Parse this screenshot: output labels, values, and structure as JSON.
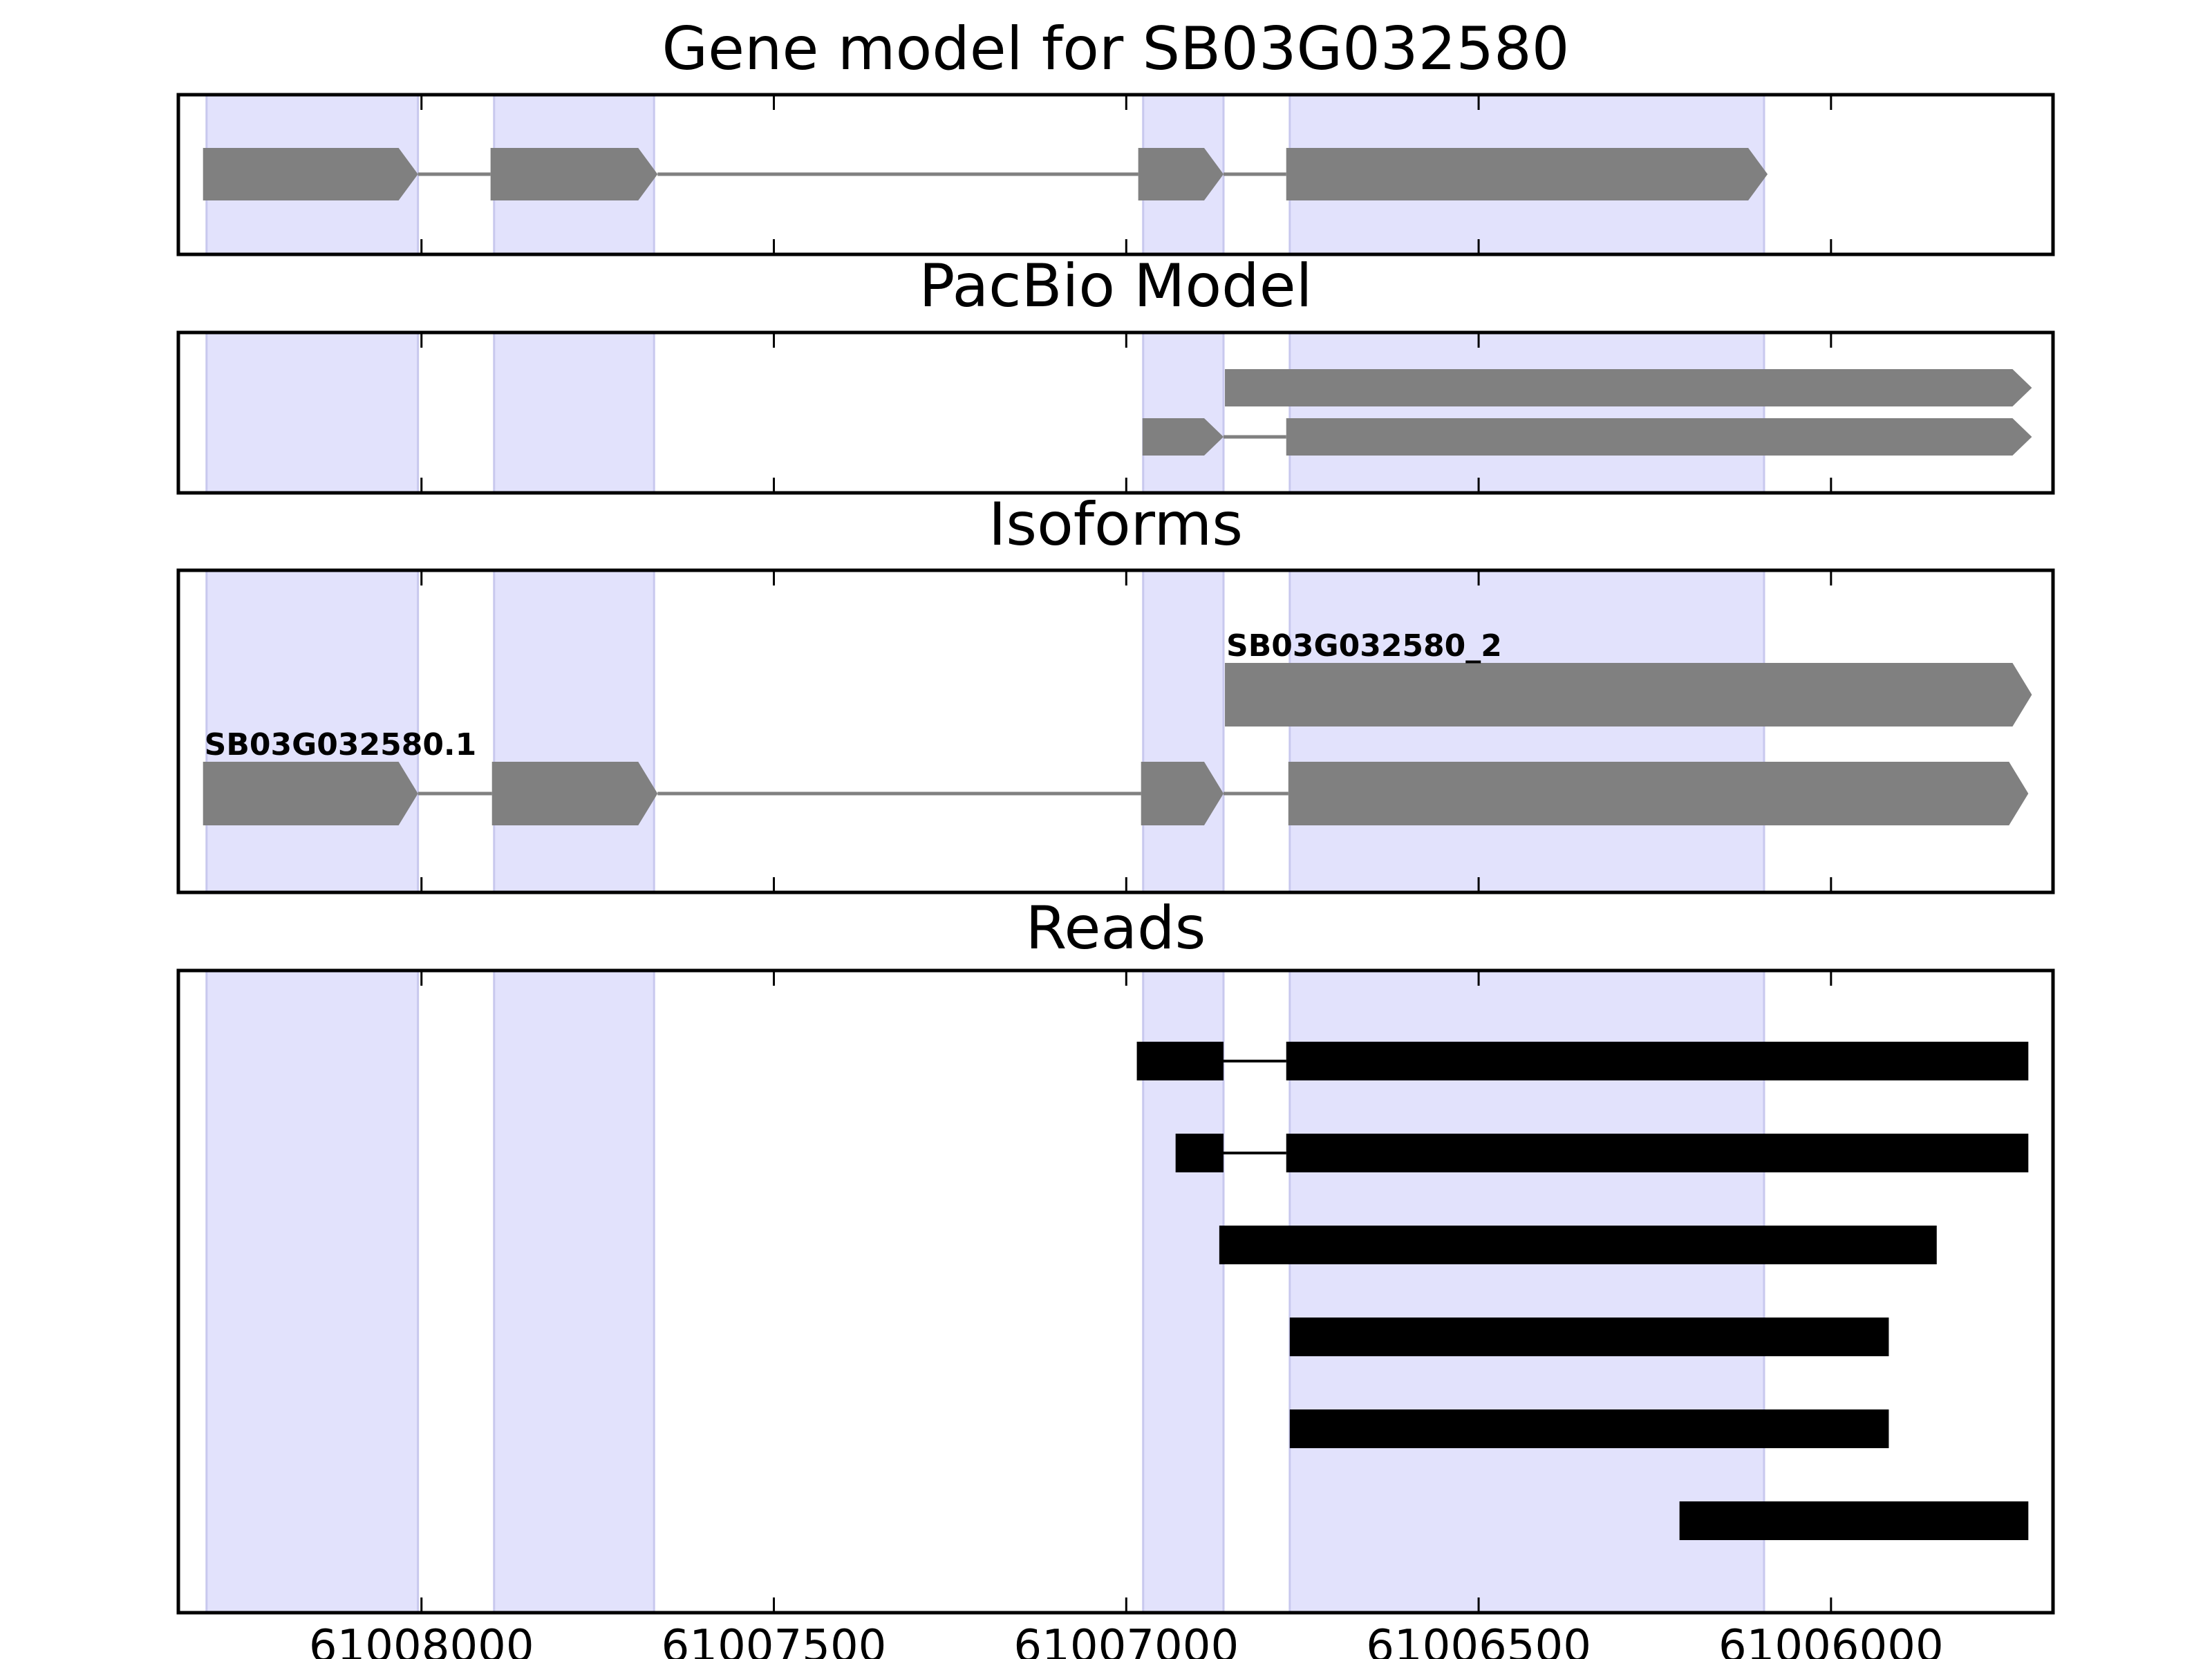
{
  "chart_data": {
    "type": "gene-track",
    "x_axis": {
      "direction": "descending",
      "xlim": [
        61008345,
        61005685
      ],
      "ticks": [
        61008000,
        61007500,
        61007000,
        61006500,
        61006000
      ],
      "tick_labels": [
        "61008000",
        "61007500",
        "61007000",
        "61006500",
        "61006000"
      ]
    },
    "exon_shading": {
      "color": "#e2e2fc",
      "regions": [
        [
          61008305,
          61008005
        ],
        [
          61007897,
          61007670
        ],
        [
          61006976,
          61006862
        ],
        [
          61006768,
          61006095
        ]
      ]
    },
    "colors": {
      "model": "#808080",
      "reads": "#000000"
    },
    "panels": [
      {
        "title": "Gene model for SB03G032580",
        "tracks": [
          {
            "label": "",
            "exons": [
              [
                61008310,
                61008005
              ],
              [
                61007902,
                61007665
              ],
              [
                61006983,
                61006862
              ],
              [
                61006773,
                61006090
              ]
            ]
          }
        ]
      },
      {
        "title": "PacBio Model",
        "tracks": [
          {
            "label": "",
            "exons": [
              [
                61006860,
                61005715
              ]
            ]
          },
          {
            "label": "",
            "exons": [
              [
                61006977,
                61006862
              ],
              [
                61006773,
                61005715
              ]
            ]
          }
        ]
      },
      {
        "title": "Isoforms",
        "tracks": [
          {
            "label": "SB03G032580_2",
            "exons": [
              [
                61006860,
                61005715
              ]
            ]
          },
          {
            "label": "SB03G032580.1",
            "exons": [
              [
                61008310,
                61008005
              ],
              [
                61007900,
                61007665
              ],
              [
                61006979,
                61006862
              ],
              [
                61006770,
                61005720
              ]
            ]
          }
        ]
      },
      {
        "title": "Reads",
        "tracks": [
          {
            "label": "",
            "exons": [
              [
                61006985,
                61006862
              ],
              [
                61006773,
                61005720
              ]
            ]
          },
          {
            "label": "",
            "exons": [
              [
                61006930,
                61006862
              ],
              [
                61006773,
                61005720
              ]
            ]
          },
          {
            "label": "",
            "exons": [
              [
                61006868,
                61005850
              ]
            ]
          },
          {
            "label": "",
            "exons": [
              [
                61006768,
                61005918
              ]
            ]
          },
          {
            "label": "",
            "exons": [
              [
                61006768,
                61005918
              ]
            ]
          },
          {
            "label": "",
            "exons": [
              [
                61006215,
                61005720
              ]
            ]
          }
        ]
      }
    ]
  }
}
